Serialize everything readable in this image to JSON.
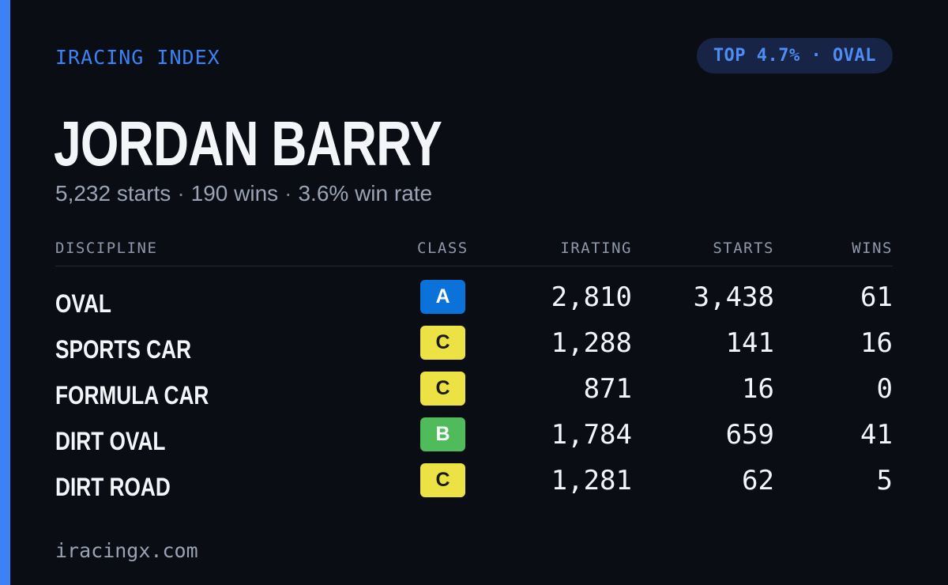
{
  "brand": "IRACING INDEX",
  "badge": "TOP 4.7% · OVAL",
  "driver": {
    "name": "JORDAN BARRY",
    "starts": "5,232 starts",
    "wins": "190 wins",
    "win_rate": "3.6% win rate",
    "separator": "·"
  },
  "table": {
    "headers": {
      "discipline": "DISCIPLINE",
      "class": "CLASS",
      "irating": "IRATING",
      "starts": "STARTS",
      "wins": "WINS"
    },
    "rows": [
      {
        "discipline": "OVAL",
        "class": "A",
        "class_color": "#0b72d9",
        "class_text_color": "#ffffff",
        "irating": "2,810",
        "starts": "3,438",
        "wins": "61"
      },
      {
        "discipline": "SPORTS CAR",
        "class": "C",
        "class_color": "#ece244",
        "class_text_color": "#1a1a1a",
        "irating": "1,288",
        "starts": "141",
        "wins": "16"
      },
      {
        "discipline": "FORMULA CAR",
        "class": "C",
        "class_color": "#ece244",
        "class_text_color": "#1a1a1a",
        "irating": "871",
        "starts": "16",
        "wins": "0"
      },
      {
        "discipline": "DIRT OVAL",
        "class": "B",
        "class_color": "#4fbb5a",
        "class_text_color": "#ffffff",
        "irating": "1,784",
        "starts": "659",
        "wins": "41"
      },
      {
        "discipline": "DIRT ROAD",
        "class": "C",
        "class_color": "#ece244",
        "class_text_color": "#1a1a1a",
        "irating": "1,281",
        "starts": "62",
        "wins": "5"
      }
    ]
  },
  "footer": "iracingx.com",
  "colors": {
    "background": "#0a0d14",
    "accent": "#3b82f6",
    "badge_bg": "#172445"
  }
}
